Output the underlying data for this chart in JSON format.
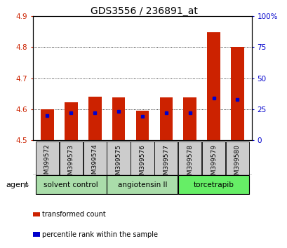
{
  "title": "GDS3556 / 236891_at",
  "samples": [
    "GSM399572",
    "GSM399573",
    "GSM399574",
    "GSM399575",
    "GSM399576",
    "GSM399577",
    "GSM399578",
    "GSM399579",
    "GSM399580"
  ],
  "red_values": [
    4.6,
    4.623,
    4.64,
    4.638,
    4.596,
    4.638,
    4.638,
    4.848,
    4.8
  ],
  "blue_values_pct": [
    20,
    22,
    22,
    23,
    19,
    22,
    22,
    34,
    33
  ],
  "baseline": 4.5,
  "ylim_left": [
    4.5,
    4.9
  ],
  "ylim_right": [
    0,
    100
  ],
  "yticks_left": [
    4.5,
    4.6,
    4.7,
    4.8,
    4.9
  ],
  "ytick_labels_left": [
    "4.5",
    "4.6",
    "4.7",
    "4.8",
    "4.9"
  ],
  "yticks_right": [
    0,
    25,
    50,
    75,
    100
  ],
  "ytick_labels_right": [
    "0",
    "25",
    "50",
    "75",
    "100%"
  ],
  "groups": [
    {
      "label": "solvent control",
      "start": 0,
      "end": 2,
      "color": "#aaddaa"
    },
    {
      "label": "angiotensin II",
      "start": 3,
      "end": 5,
      "color": "#aaddaa"
    },
    {
      "label": "torcetrapib",
      "start": 6,
      "end": 8,
      "color": "#66ee66"
    }
  ],
  "bar_color": "#cc2200",
  "blue_color": "#0000cc",
  "bar_width": 0.55,
  "legend_items": [
    {
      "label": "transformed count",
      "color": "#cc2200"
    },
    {
      "label": "percentile rank within the sample",
      "color": "#0000cc"
    }
  ],
  "agent_label": "agent",
  "background_color": "#ffffff",
  "tick_color_left": "#cc2200",
  "tick_color_right": "#0000cc",
  "sample_box_color": "#cccccc",
  "grid_dotted_color": "#000000"
}
